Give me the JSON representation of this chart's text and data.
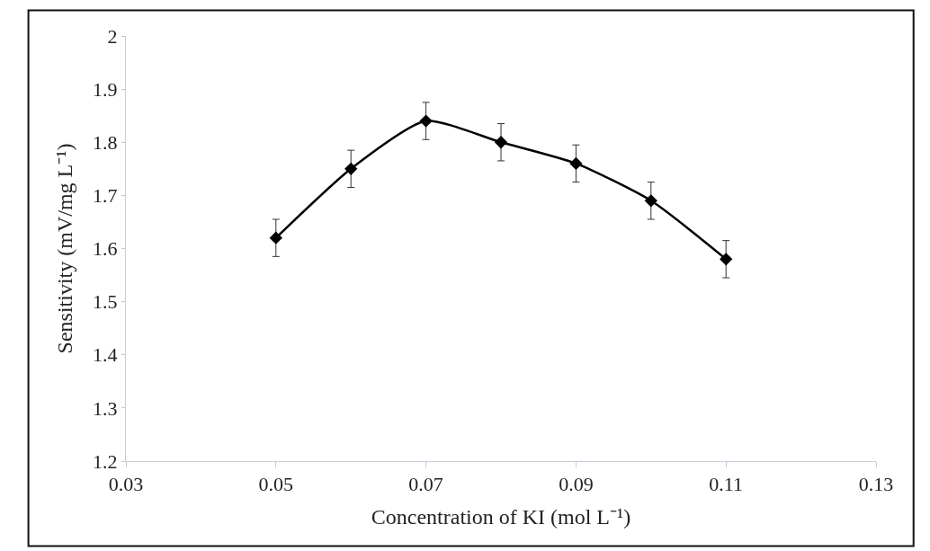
{
  "chart_data": {
    "type": "line",
    "xlabel": "Concentration of KI (mol L⁻¹)",
    "ylabel": "Sensitivity (mV/mg L⁻¹)",
    "x": [
      0.05,
      0.06,
      0.07,
      0.08,
      0.09,
      0.1,
      0.11
    ],
    "series": [
      {
        "color": "#000000",
        "values": [
          1.62,
          1.75,
          1.84,
          1.8,
          1.76,
          1.69,
          1.58
        ],
        "errors": [
          0.035,
          0.035,
          0.035,
          0.035,
          0.035,
          0.035,
          0.035
        ]
      }
    ],
    "xlim": [
      0.03,
      0.13
    ],
    "xticks": [
      0.03,
      0.05,
      0.07,
      0.09,
      0.11,
      0.13
    ],
    "ylim": [
      1.2,
      2
    ],
    "yticks": [
      1.2,
      1.3,
      1.4,
      1.5,
      1.6,
      1.7,
      1.8,
      1.9,
      2
    ],
    "legend": false,
    "marker": "diamond",
    "line_style": "solid"
  }
}
